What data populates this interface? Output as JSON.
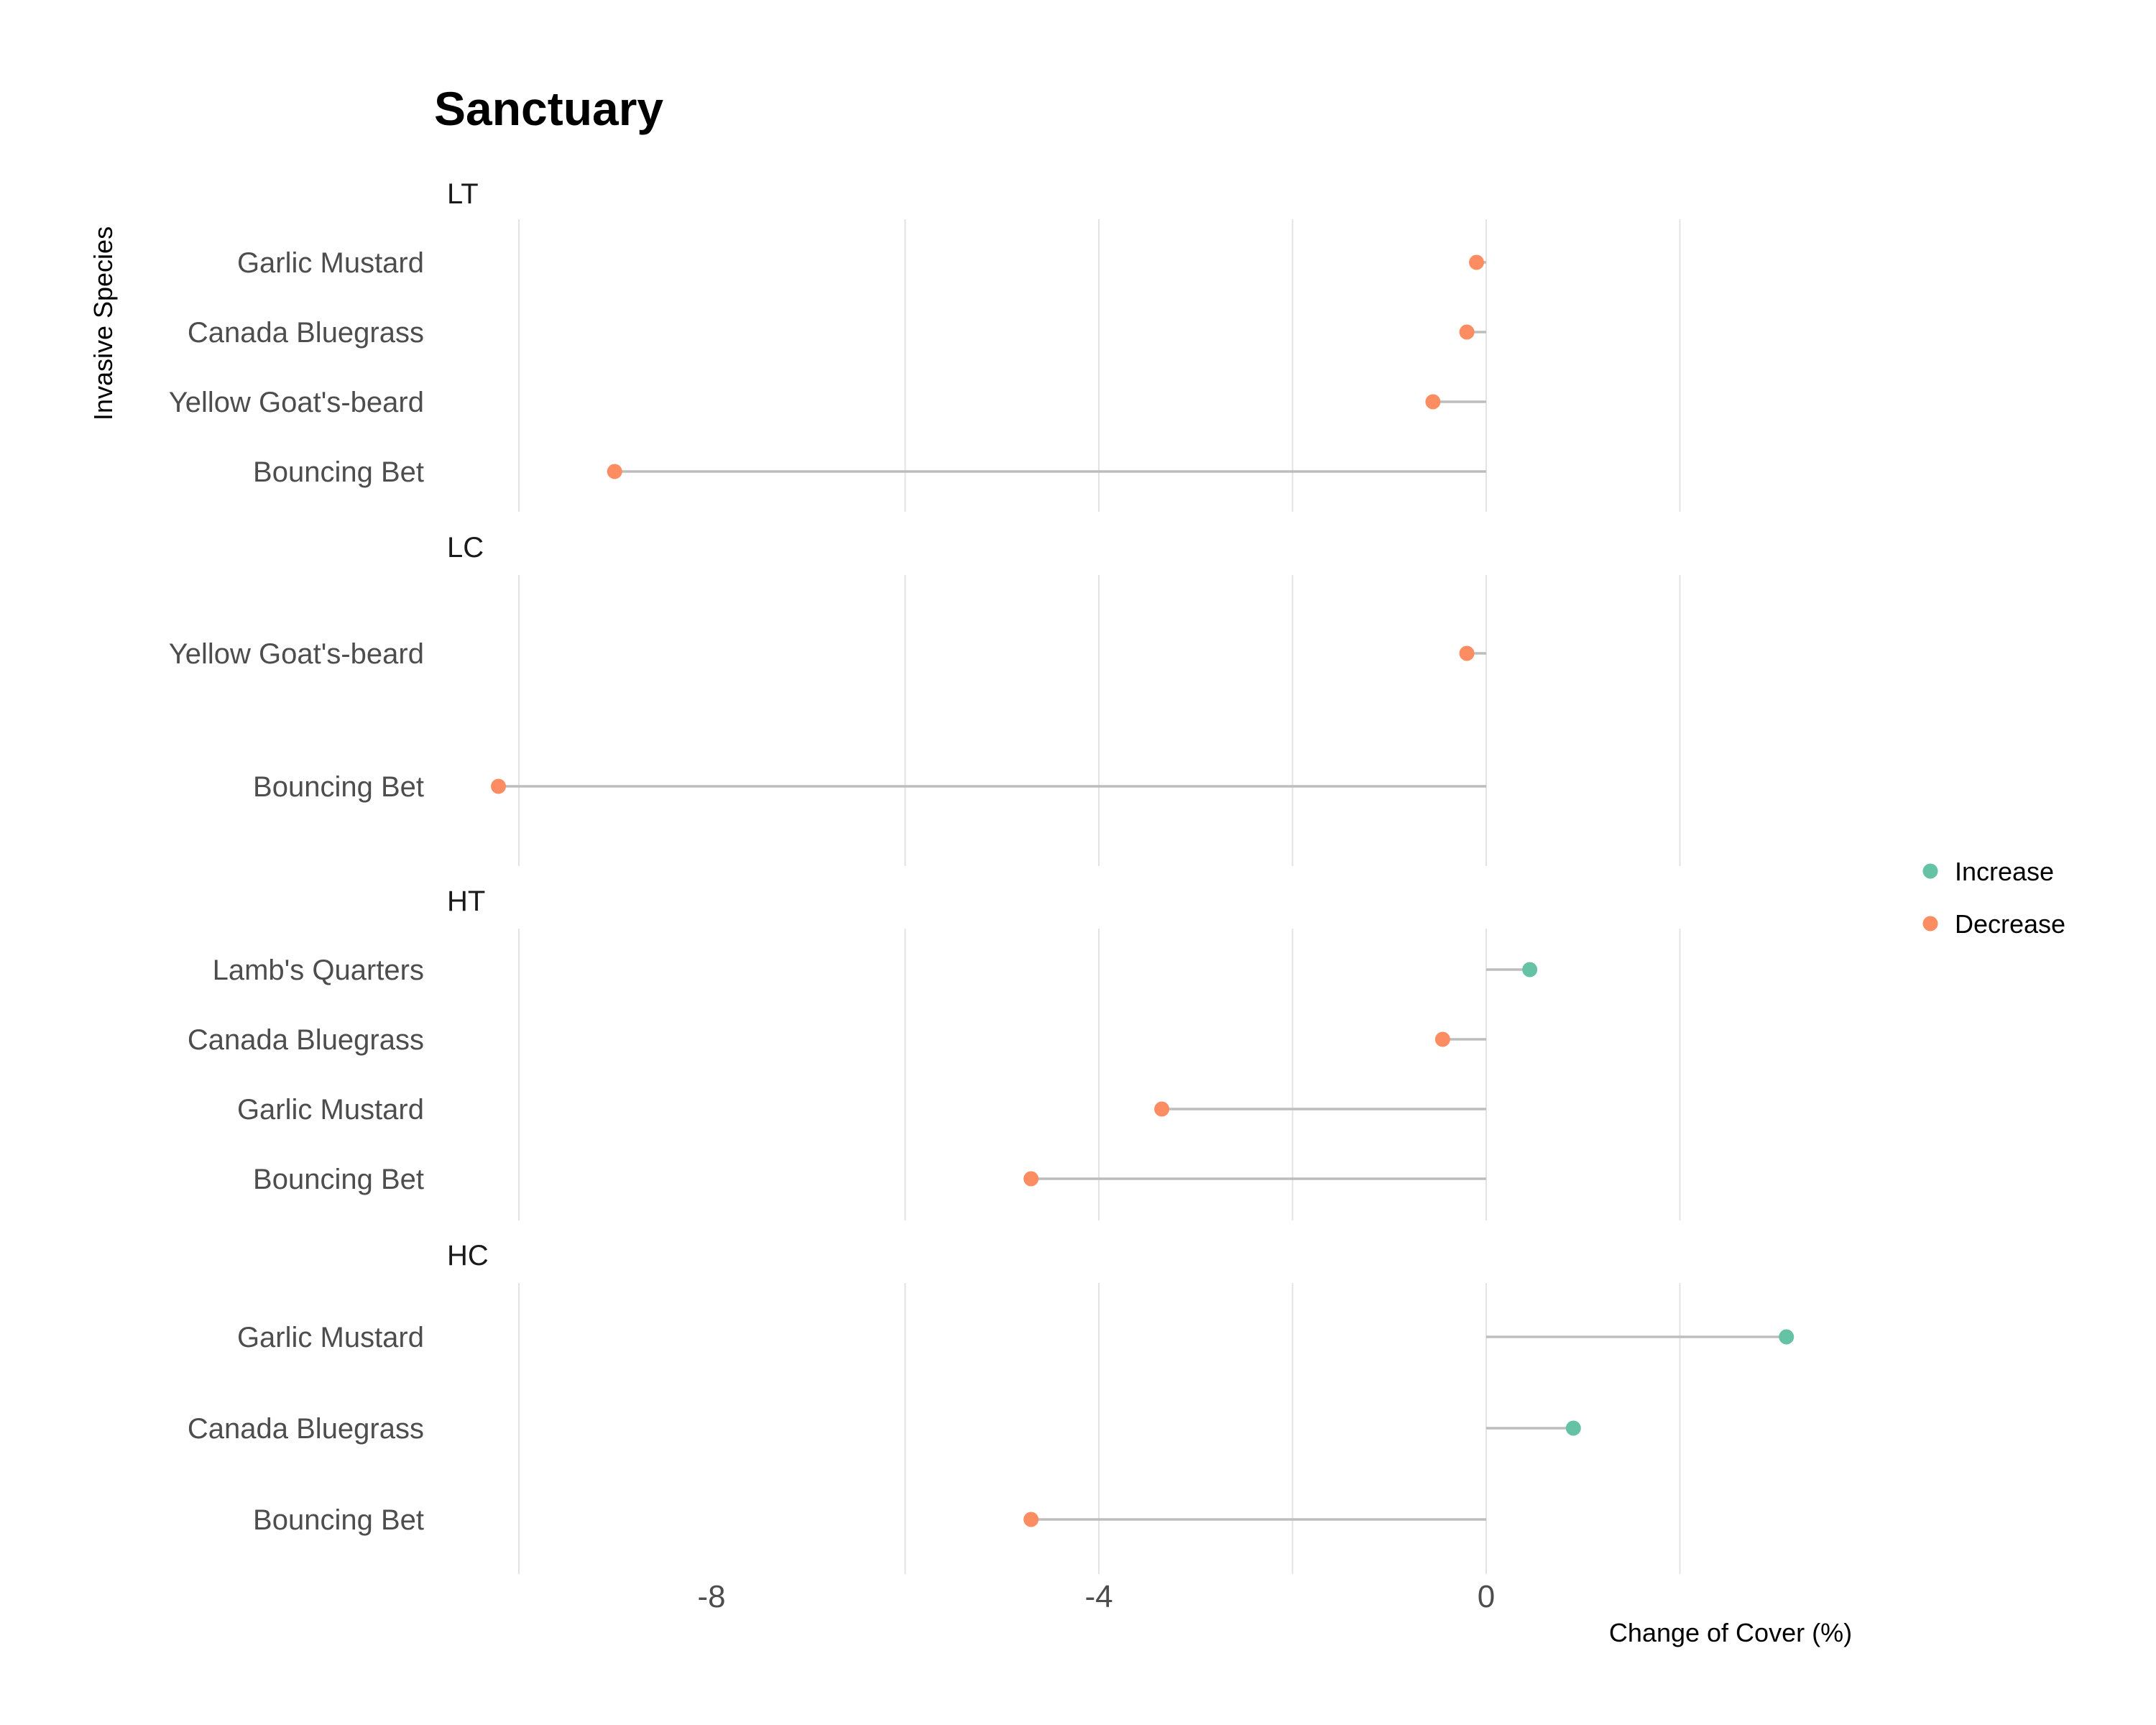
{
  "chart_data": {
    "type": "lollipop",
    "title": "Sanctuary",
    "xlabel": "Change of Cover (%)",
    "ylabel": "Invasive Species",
    "xlim": [
      -10,
      3.3
    ],
    "x_ticks": [
      -8,
      -4,
      0
    ],
    "grid": true,
    "legend": {
      "placement": "right",
      "entries": [
        {
          "name": "Increase",
          "color": "#66c2a5"
        },
        {
          "name": "Decrease",
          "color": "#fc8d62"
        }
      ]
    },
    "panels": [
      {
        "label": "LT",
        "points": [
          {
            "category": "Garlic Mustard",
            "value": -0.1
          },
          {
            "category": "Canada Bluegrass",
            "value": -0.2
          },
          {
            "category": "Yellow Goat's-beard",
            "value": -0.55
          },
          {
            "category": "Bouncing Bet",
            "value": -9.0
          }
        ]
      },
      {
        "label": "LC",
        "points": [
          {
            "category": "Yellow Goat's-beard",
            "value": -0.2
          },
          {
            "category": "Bouncing Bet",
            "value": -10.2
          }
        ]
      },
      {
        "label": "HT",
        "points": [
          {
            "category": "Lamb's Quarters",
            "value": 0.45
          },
          {
            "category": "Canada Bluegrass",
            "value": -0.45
          },
          {
            "category": "Garlic Mustard",
            "value": -3.35
          },
          {
            "category": "Bouncing Bet",
            "value": -4.7
          }
        ]
      },
      {
        "label": "HC",
        "points": [
          {
            "category": "Garlic Mustard",
            "value": 3.1
          },
          {
            "category": "Canada Bluegrass",
            "value": 0.9
          },
          {
            "category": "Bouncing Bet",
            "value": -4.7
          }
        ]
      }
    ]
  }
}
